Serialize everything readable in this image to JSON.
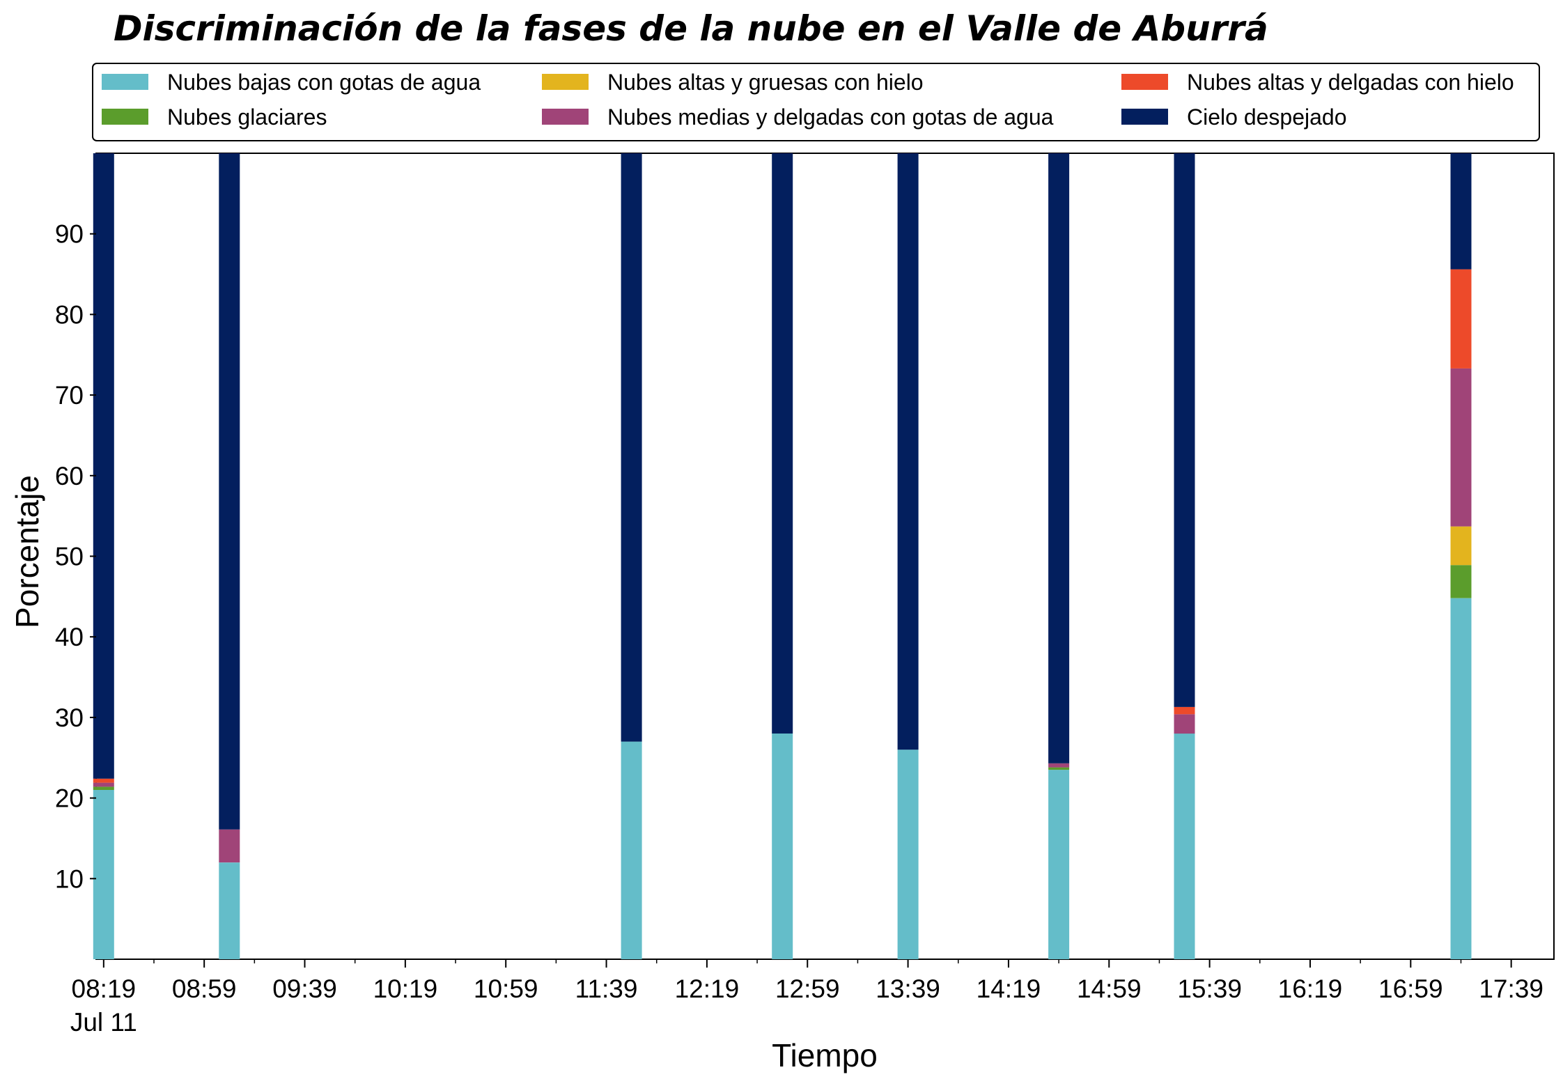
{
  "chart_data": {
    "type": "bar",
    "stacked": true,
    "title": "Discriminación de la fases de la nube en el Valle de Aburrá",
    "xlabel": "Tiempo",
    "ylabel": "Porcentaje",
    "ylim": [
      0,
      100
    ],
    "yticks": [
      10,
      20,
      30,
      40,
      50,
      60,
      70,
      80,
      90
    ],
    "xlim": [
      "08:16",
      "17:56"
    ],
    "xticks": [
      "08:19",
      "08:59",
      "09:39",
      "10:19",
      "10:59",
      "11:39",
      "12:19",
      "12:59",
      "13:39",
      "14:19",
      "14:59",
      "15:39",
      "16:19",
      "16:59",
      "17:39"
    ],
    "xtick_first_sublabel": "Jul 11",
    "grid": false,
    "legend_position": "top",
    "categories": [
      "08:19",
      "09:09",
      "11:49",
      "12:49",
      "13:39",
      "14:39",
      "15:29",
      "17:19"
    ],
    "series": [
      {
        "name": "Nubes bajas con gotas de agua",
        "color": "#64bdc9",
        "values": [
          21.0,
          12.0,
          27.0,
          28.0,
          26.0,
          23.5,
          28.0,
          44.8
        ]
      },
      {
        "name": "Nubes glaciares",
        "color": "#5b9d2c",
        "values": [
          0.4,
          0,
          0,
          0,
          0,
          0.3,
          0,
          4.1
        ]
      },
      {
        "name": "Nubes altas y gruesas con hielo",
        "color": "#e3b41e",
        "values": [
          0,
          0,
          0,
          0,
          0,
          0,
          0,
          4.8
        ]
      },
      {
        "name": "Nubes medias y delgadas con gotas de agua",
        "color": "#a04478",
        "values": [
          0.5,
          4.1,
          0,
          0,
          0,
          0.5,
          2.4,
          19.6
        ]
      },
      {
        "name": "Nubes altas y delgadas con hielo",
        "color": "#ed4a2a",
        "values": [
          0.5,
          0,
          0,
          0,
          0,
          0,
          0.9,
          12.3
        ]
      },
      {
        "name": "Cielo despejado",
        "color": "#031f5e",
        "values": [
          77.6,
          83.9,
          73.0,
          72.0,
          74.0,
          75.7,
          68.7,
          14.4
        ]
      }
    ]
  }
}
